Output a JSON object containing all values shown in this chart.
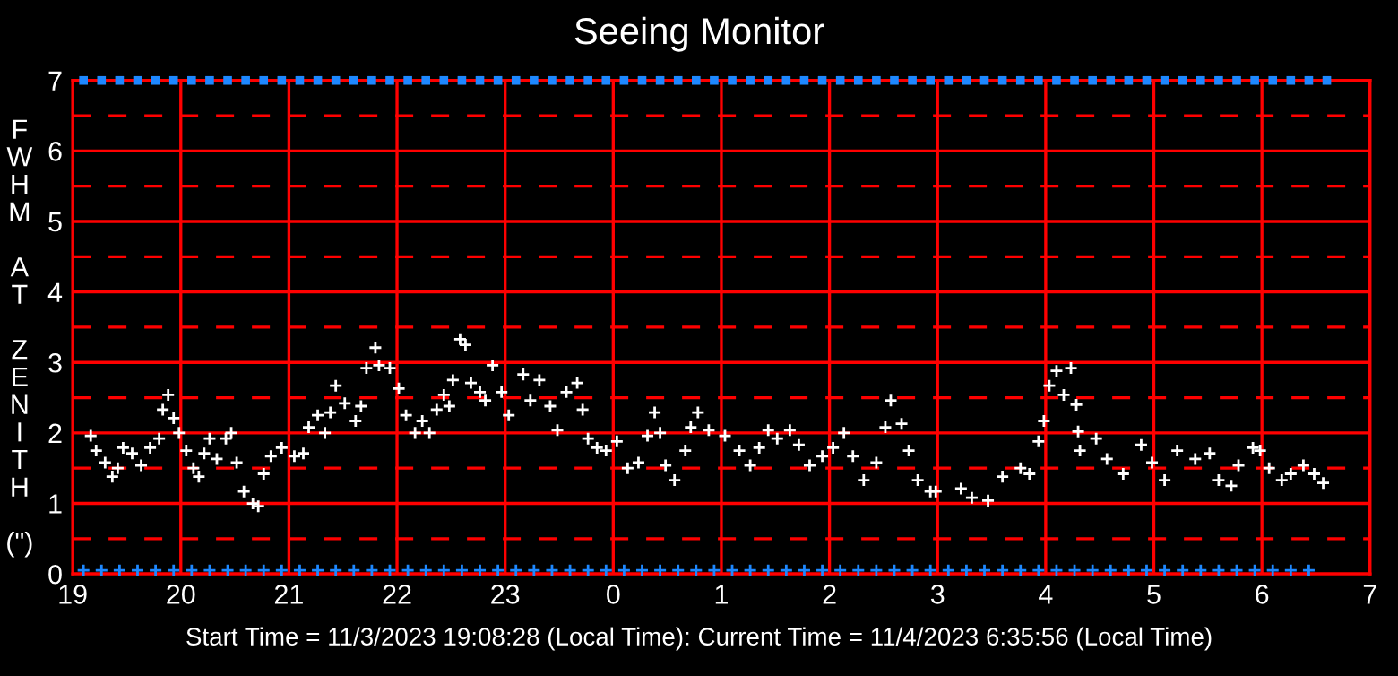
{
  "chart_data": {
    "type": "scatter",
    "title": "Seeing Monitor",
    "ylabel": "FWHM AT ZENITH (\")",
    "annotations": [
      "Start Time = 11/3/2023 19:08:28 (Local Time): Current Time = 11/4/2023 6:35:56 (Local Time)"
    ],
    "xlim": [
      "2023-11-03T19:00",
      "2023-11-04T07:00"
    ],
    "ylim": [
      0,
      7
    ],
    "xticks": [
      {
        "value": "2023-11-03T19:00",
        "label": "19"
      },
      {
        "value": "2023-11-03T20:00",
        "label": "20"
      },
      {
        "value": "2023-11-03T21:00",
        "label": "21"
      },
      {
        "value": "2023-11-03T22:00",
        "label": "22"
      },
      {
        "value": "2023-11-03T23:00",
        "label": "23"
      },
      {
        "value": "2023-11-04T00:00",
        "label": "0"
      },
      {
        "value": "2023-11-04T01:00",
        "label": "1"
      },
      {
        "value": "2023-11-04T02:00",
        "label": "2"
      },
      {
        "value": "2023-11-04T03:00",
        "label": "3"
      },
      {
        "value": "2023-11-04T04:00",
        "label": "4"
      },
      {
        "value": "2023-11-04T05:00",
        "label": "5"
      },
      {
        "value": "2023-11-04T06:00",
        "label": "6"
      },
      {
        "value": "2023-11-04T07:00",
        "label": "7"
      }
    ],
    "yticks": [
      0,
      1,
      2,
      3,
      4,
      5,
      6,
      7
    ],
    "grid": true,
    "marker": "cross",
    "ref_lines": [
      {
        "axis": "y",
        "value": 0.5,
        "color": "#ff0000",
        "line_style": "dashed"
      },
      {
        "axis": "y",
        "value": 1.5,
        "color": "#ff0000",
        "line_style": "dashed"
      },
      {
        "axis": "y",
        "value": 2.5,
        "color": "#ff0000",
        "line_style": "dashed"
      },
      {
        "axis": "y",
        "value": 3.5,
        "color": "#ff0000",
        "line_style": "dashed"
      },
      {
        "axis": "y",
        "value": 4.5,
        "color": "#ff0000",
        "line_style": "dashed"
      },
      {
        "axis": "y",
        "value": 5.5,
        "color": "#ff0000",
        "line_style": "dashed"
      },
      {
        "axis": "y",
        "value": 6.5,
        "color": "#ff0000",
        "line_style": "dashed"
      }
    ],
    "series": [
      {
        "color": "#ffffff",
        "x": [
          "2023-11-03T19:10",
          "2023-11-03T19:13",
          "2023-11-03T19:18",
          "2023-11-03T19:22",
          "2023-11-03T19:25",
          "2023-11-03T19:28",
          "2023-11-03T19:33",
          "2023-11-03T19:38",
          "2023-11-03T19:43",
          "2023-11-03T19:48",
          "2023-11-03T19:50",
          "2023-11-03T19:53",
          "2023-11-03T19:56",
          "2023-11-03T19:59",
          "2023-11-03T20:03",
          "2023-11-03T20:07",
          "2023-11-03T20:10",
          "2023-11-03T20:13",
          "2023-11-03T20:16",
          "2023-11-03T20:20",
          "2023-11-03T20:25",
          "2023-11-03T20:28",
          "2023-11-03T20:31",
          "2023-11-03T20:35",
          "2023-11-03T20:40",
          "2023-11-03T20:43",
          "2023-11-03T20:46",
          "2023-11-03T20:50",
          "2023-11-03T20:56",
          "2023-11-03T21:03",
          "2023-11-03T21:08",
          "2023-11-03T21:11",
          "2023-11-03T21:16",
          "2023-11-03T21:20",
          "2023-11-03T21:23",
          "2023-11-03T21:26",
          "2023-11-03T21:31",
          "2023-11-03T21:37",
          "2023-11-03T21:40",
          "2023-11-03T21:43",
          "2023-11-03T21:48",
          "2023-11-03T21:50",
          "2023-11-03T21:56",
          "2023-11-03T22:01",
          "2023-11-03T22:05",
          "2023-11-03T22:10",
          "2023-11-03T22:14",
          "2023-11-03T22:18",
          "2023-11-03T22:22",
          "2023-11-03T22:26",
          "2023-11-03T22:29",
          "2023-11-03T22:31",
          "2023-11-03T22:35",
          "2023-11-03T22:38",
          "2023-11-03T22:41",
          "2023-11-03T22:46",
          "2023-11-03T22:49",
          "2023-11-03T22:53",
          "2023-11-03T22:58",
          "2023-11-03T23:02",
          "2023-11-03T23:10",
          "2023-11-03T23:14",
          "2023-11-03T23:19",
          "2023-11-03T23:25",
          "2023-11-03T23:29",
          "2023-11-03T23:34",
          "2023-11-03T23:40",
          "2023-11-03T23:43",
          "2023-11-03T23:46",
          "2023-11-03T23:51",
          "2023-11-03T23:56",
          "2023-11-04T00:02",
          "2023-11-04T00:08",
          "2023-11-04T00:14",
          "2023-11-04T00:19",
          "2023-11-04T00:23",
          "2023-11-04T00:26",
          "2023-11-04T00:29",
          "2023-11-04T00:34",
          "2023-11-04T00:40",
          "2023-11-04T00:43",
          "2023-11-04T00:47",
          "2023-11-04T00:53",
          "2023-11-04T01:02",
          "2023-11-04T01:10",
          "2023-11-04T01:16",
          "2023-11-04T01:21",
          "2023-11-04T01:26",
          "2023-11-04T01:31",
          "2023-11-04T01:38",
          "2023-11-04T01:43",
          "2023-11-04T01:49",
          "2023-11-04T01:56",
          "2023-11-04T02:02",
          "2023-11-04T02:08",
          "2023-11-04T02:13",
          "2023-11-04T02:19",
          "2023-11-04T02:26",
          "2023-11-04T02:31",
          "2023-11-04T02:34",
          "2023-11-04T02:40",
          "2023-11-04T02:44",
          "2023-11-04T02:49",
          "2023-11-04T02:56",
          "2023-11-04T02:59",
          "2023-11-04T03:13",
          "2023-11-04T03:19",
          "2023-11-04T03:28",
          "2023-11-04T03:36",
          "2023-11-04T03:46",
          "2023-11-04T03:51",
          "2023-11-04T03:56",
          "2023-11-04T03:59",
          "2023-11-04T04:02",
          "2023-11-04T04:06",
          "2023-11-04T04:10",
          "2023-11-04T04:14",
          "2023-11-04T04:17",
          "2023-11-04T04:18",
          "2023-11-04T04:19",
          "2023-11-04T04:28",
          "2023-11-04T04:34",
          "2023-11-04T04:43",
          "2023-11-04T04:53",
          "2023-11-04T04:59",
          "2023-11-04T05:06",
          "2023-11-04T05:13",
          "2023-11-04T05:23",
          "2023-11-04T05:31",
          "2023-11-04T05:36",
          "2023-11-04T05:43",
          "2023-11-04T05:47",
          "2023-11-04T05:55",
          "2023-11-04T05:59",
          "2023-11-04T06:04",
          "2023-11-04T06:11",
          "2023-11-04T06:16",
          "2023-11-04T06:23",
          "2023-11-04T06:29",
          "2023-11-04T06:34"
        ],
        "values": [
          1.96,
          1.75,
          1.58,
          1.38,
          1.5,
          1.79,
          1.71,
          1.54,
          1.79,
          1.92,
          2.33,
          2.54,
          2.21,
          2.0,
          1.75,
          1.5,
          1.38,
          1.71,
          1.92,
          1.63,
          1.92,
          2.0,
          1.58,
          1.17,
          1.0,
          0.96,
          1.42,
          1.67,
          1.79,
          1.67,
          1.71,
          2.08,
          2.25,
          2.0,
          2.29,
          2.67,
          2.42,
          2.17,
          2.38,
          2.92,
          3.21,
          2.96,
          2.92,
          2.63,
          2.25,
          2.0,
          2.17,
          2.0,
          2.33,
          2.54,
          2.38,
          2.75,
          3.33,
          3.25,
          2.71,
          2.58,
          2.46,
          2.96,
          2.58,
          2.25,
          2.83,
          2.46,
          2.75,
          2.38,
          2.04,
          2.58,
          2.71,
          2.33,
          1.92,
          1.79,
          1.75,
          1.88,
          1.5,
          1.58,
          1.96,
          2.29,
          2.0,
          1.54,
          1.33,
          1.75,
          2.08,
          2.29,
          2.04,
          1.96,
          1.75,
          1.54,
          1.79,
          2.04,
          1.92,
          2.04,
          1.83,
          1.54,
          1.67,
          1.79,
          2.0,
          1.67,
          1.33,
          1.58,
          2.08,
          2.46,
          2.13,
          1.75,
          1.33,
          1.17,
          1.17,
          1.21,
          1.08,
          1.04,
          1.38,
          1.5,
          1.42,
          1.88,
          2.17,
          2.67,
          2.88,
          2.54,
          2.92,
          2.4,
          2.02,
          1.75,
          1.92,
          1.63,
          1.42,
          1.83,
          1.58,
          1.33,
          1.75,
          1.63,
          1.71,
          1.33,
          1.25,
          1.54,
          1.79,
          1.75,
          1.5,
          1.33,
          1.42,
          1.54,
          1.42,
          1.29
        ]
      },
      {
        "color": "#1e88ff",
        "marker": "square",
        "x": [
          "2023-11-03T19:06",
          "2023-11-03T19:16",
          "2023-11-03T19:26",
          "2023-11-03T19:36",
          "2023-11-03T19:46",
          "2023-11-03T19:56",
          "2023-11-03T20:06",
          "2023-11-03T20:16",
          "2023-11-03T20:26",
          "2023-11-03T20:36",
          "2023-11-03T20:46",
          "2023-11-03T20:56",
          "2023-11-03T21:06",
          "2023-11-03T21:16",
          "2023-11-03T21:26",
          "2023-11-03T21:36",
          "2023-11-03T21:46",
          "2023-11-03T21:56",
          "2023-11-03T22:06",
          "2023-11-03T22:16",
          "2023-11-03T22:26",
          "2023-11-03T22:36",
          "2023-11-03T22:46",
          "2023-11-03T22:56",
          "2023-11-03T23:06",
          "2023-11-03T23:16",
          "2023-11-03T23:26",
          "2023-11-03T23:36",
          "2023-11-03T23:46",
          "2023-11-03T23:56",
          "2023-11-04T00:06",
          "2023-11-04T00:16",
          "2023-11-04T00:26",
          "2023-11-04T00:36",
          "2023-11-04T00:46",
          "2023-11-04T00:56",
          "2023-11-04T01:06",
          "2023-11-04T01:16",
          "2023-11-04T01:26",
          "2023-11-04T01:36",
          "2023-11-04T01:46",
          "2023-11-04T01:56",
          "2023-11-04T02:06",
          "2023-11-04T02:16",
          "2023-11-04T02:26",
          "2023-11-04T02:36",
          "2023-11-04T02:46",
          "2023-11-04T02:56",
          "2023-11-04T03:06",
          "2023-11-04T03:16",
          "2023-11-04T03:26",
          "2023-11-04T03:36",
          "2023-11-04T03:46",
          "2023-11-04T03:56",
          "2023-11-04T04:06",
          "2023-11-04T04:16",
          "2023-11-04T04:26",
          "2023-11-04T04:36",
          "2023-11-04T04:46",
          "2023-11-04T04:56",
          "2023-11-04T05:06",
          "2023-11-04T05:16",
          "2023-11-04T05:26",
          "2023-11-04T05:36",
          "2023-11-04T05:46",
          "2023-11-04T05:56",
          "2023-11-04T06:06",
          "2023-11-04T06:16",
          "2023-11-04T06:26",
          "2023-11-04T06:36"
        ],
        "values": [
          7,
          7,
          7,
          7,
          7,
          7,
          7,
          7,
          7,
          7,
          7,
          7,
          7,
          7,
          7,
          7,
          7,
          7,
          7,
          7,
          7,
          7,
          7,
          7,
          7,
          7,
          7,
          7,
          7,
          7,
          7,
          7,
          7,
          7,
          7,
          7,
          7,
          7,
          7,
          7,
          7,
          7,
          7,
          7,
          7,
          7,
          7,
          7,
          7,
          7,
          7,
          7,
          7,
          7,
          7,
          7,
          7,
          7,
          7,
          7,
          7,
          7,
          7,
          7,
          7,
          7,
          7,
          7,
          7,
          7
        ]
      },
      {
        "color": "#1e88ff",
        "x": [
          "2023-11-03T19:06",
          "2023-11-03T19:16",
          "2023-11-03T19:26",
          "2023-11-03T19:36",
          "2023-11-03T19:46",
          "2023-11-03T19:56",
          "2023-11-03T20:06",
          "2023-11-03T20:16",
          "2023-11-03T20:26",
          "2023-11-03T20:36",
          "2023-11-03T20:46",
          "2023-11-03T20:56",
          "2023-11-03T21:06",
          "2023-11-03T21:16",
          "2023-11-03T21:26",
          "2023-11-03T21:36",
          "2023-11-03T21:46",
          "2023-11-03T21:56",
          "2023-11-03T22:06",
          "2023-11-03T22:16",
          "2023-11-03T22:26",
          "2023-11-03T22:36",
          "2023-11-03T22:46",
          "2023-11-03T22:56",
          "2023-11-03T23:06",
          "2023-11-03T23:16",
          "2023-11-03T23:26",
          "2023-11-03T23:36",
          "2023-11-03T23:46",
          "2023-11-03T23:56",
          "2023-11-04T00:06",
          "2023-11-04T00:16",
          "2023-11-04T00:26",
          "2023-11-04T00:36",
          "2023-11-04T00:46",
          "2023-11-04T00:56",
          "2023-11-04T01:06",
          "2023-11-04T01:16",
          "2023-11-04T01:26",
          "2023-11-04T01:36",
          "2023-11-04T01:46",
          "2023-11-04T01:56",
          "2023-11-04T02:06",
          "2023-11-04T02:16",
          "2023-11-04T02:26",
          "2023-11-04T02:36",
          "2023-11-04T02:46",
          "2023-11-04T02:56",
          "2023-11-04T03:06",
          "2023-11-04T03:16",
          "2023-11-04T03:26",
          "2023-11-04T03:36",
          "2023-11-04T03:46",
          "2023-11-04T03:56",
          "2023-11-04T04:06",
          "2023-11-04T04:16",
          "2023-11-04T04:26",
          "2023-11-04T04:36",
          "2023-11-04T04:46",
          "2023-11-04T04:56",
          "2023-11-04T05:06",
          "2023-11-04T05:16",
          "2023-11-04T05:26",
          "2023-11-04T05:36",
          "2023-11-04T05:46",
          "2023-11-04T05:56",
          "2023-11-04T06:06",
          "2023-11-04T06:16",
          "2023-11-04T06:26"
        ],
        "values": [
          0.05,
          0.05,
          0.05,
          0.05,
          0.05,
          0.05,
          0.05,
          0.05,
          0.05,
          0.05,
          0.05,
          0.05,
          0.05,
          0.05,
          0.05,
          0.05,
          0.05,
          0.05,
          0.05,
          0.05,
          0.05,
          0.05,
          0.05,
          0.05,
          0.05,
          0.05,
          0.05,
          0.05,
          0.05,
          0.05,
          0.05,
          0.05,
          0.05,
          0.05,
          0.05,
          0.05,
          0.05,
          0.05,
          0.05,
          0.05,
          0.05,
          0.05,
          0.05,
          0.05,
          0.05,
          0.05,
          0.05,
          0.05,
          0.05,
          0.05,
          0.05,
          0.05,
          0.05,
          0.05,
          0.05,
          0.05,
          0.05,
          0.05,
          0.05,
          0.05,
          0.05,
          0.05,
          0.05,
          0.05,
          0.05,
          0.05,
          0.05,
          0.05,
          0.05
        ]
      }
    ]
  }
}
